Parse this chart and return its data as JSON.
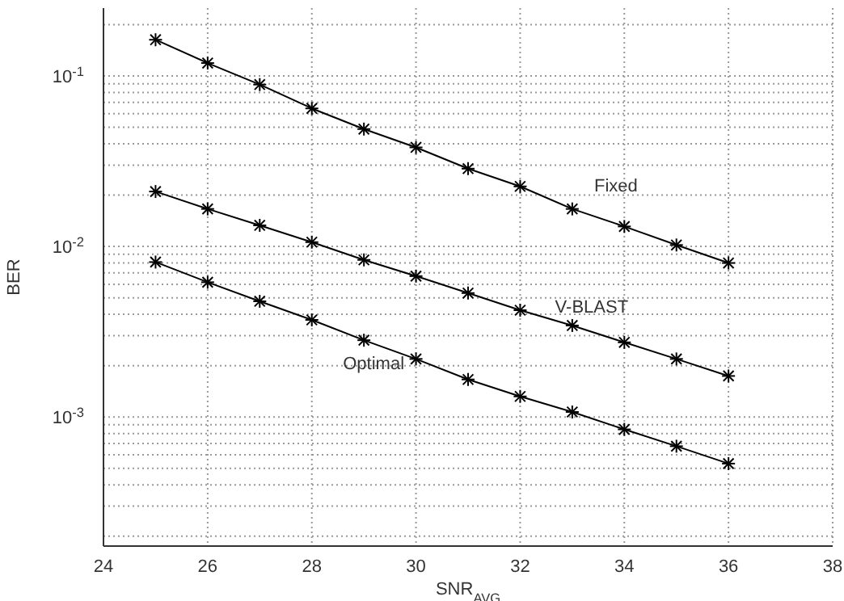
{
  "chart_data": {
    "type": "line",
    "xlabel": "SNR$_{AVG}$",
    "ylabel": "BER",
    "x": [
      25,
      26,
      27,
      28,
      29,
      30,
      31,
      32,
      33,
      34,
      35,
      36
    ],
    "series": [
      {
        "name": "Fixed",
        "color": "#000000",
        "values": [
          0.163,
          0.119,
          0.089,
          0.0645,
          0.0488,
          0.0381,
          0.0286,
          0.0225,
          0.0166,
          0.0131,
          0.0102,
          0.008
        ]
      },
      {
        "name": "V-BLAST",
        "color": "#000000",
        "values": [
          0.021,
          0.0166,
          0.0133,
          0.0106,
          0.00834,
          0.0067,
          0.00533,
          0.00423,
          0.00344,
          0.00274,
          0.00219,
          0.00174
        ]
      },
      {
        "name": "Optimal",
        "color": "#000000",
        "values": [
          0.0081,
          0.00617,
          0.00477,
          0.00371,
          0.00282,
          0.00219,
          0.00166,
          0.00132,
          0.00107,
          0.000846,
          0.000674,
          0.000533
        ]
      }
    ],
    "xlim": [
      24,
      38
    ],
    "xticks": [
      24,
      26,
      28,
      30,
      32,
      34,
      36,
      38
    ],
    "ylim": [
      0.000175,
      0.25
    ],
    "log": "y",
    "yticks": [
      {
        "value": 0.0002,
        "label": null
      },
      {
        "value": 0.0003,
        "label": null
      },
      {
        "value": 0.0004,
        "label": null
      },
      {
        "value": 0.0005,
        "label": null
      },
      {
        "value": 0.0006,
        "label": null
      },
      {
        "value": 0.0007,
        "label": null
      },
      {
        "value": 0.0008,
        "label": null
      },
      {
        "value": 0.0009,
        "label": null
      },
      {
        "value": 0.001,
        "label": "10$^{-3}$"
      },
      {
        "value": 0.002,
        "label": null
      },
      {
        "value": 0.003,
        "label": null
      },
      {
        "value": 0.004,
        "label": null
      },
      {
        "value": 0.005,
        "label": null
      },
      {
        "value": 0.006,
        "label": null
      },
      {
        "value": 0.007,
        "label": null
      },
      {
        "value": 0.008,
        "label": null
      },
      {
        "value": 0.009,
        "label": null
      },
      {
        "value": 0.01,
        "label": "10$^{-2}$"
      },
      {
        "value": 0.02,
        "label": null
      },
      {
        "value": 0.03,
        "label": null
      },
      {
        "value": 0.04,
        "label": null
      },
      {
        "value": 0.05,
        "label": null
      },
      {
        "value": 0.06,
        "label": null
      },
      {
        "value": 0.07,
        "label": null
      },
      {
        "value": 0.08,
        "label": null
      },
      {
        "value": 0.09,
        "label": null
      },
      {
        "value": 0.1,
        "label": "10$^{-1}$"
      },
      {
        "value": 0.2,
        "label": null
      }
    ],
    "grid": true,
    "marker": "cross",
    "line_style": "solid"
  }
}
